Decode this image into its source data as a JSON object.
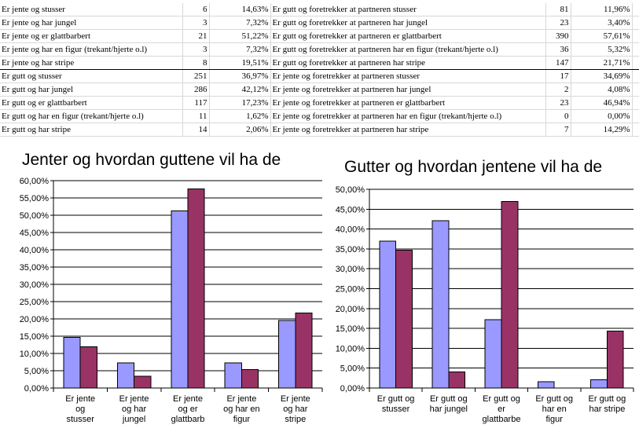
{
  "sheet": {
    "left_rows": [
      {
        "label": "Er jente og stusser",
        "count": "6",
        "pct": "14,63%"
      },
      {
        "label": "Er jente og har jungel",
        "count": "3",
        "pct": "7,32%"
      },
      {
        "label": "Er jente og er glattbarbert",
        "count": "21",
        "pct": "51,22%"
      },
      {
        "label": "Er jente og har en figur (trekant/hjerte o.l)",
        "count": "3",
        "pct": "7,32%"
      },
      {
        "label": "Er jente og har stripe",
        "count": "8",
        "pct": "19,51%"
      },
      {
        "label": "Er gutt og stusser",
        "count": "251",
        "pct": "36,97%"
      },
      {
        "label": "Er gutt og har jungel",
        "count": "286",
        "pct": "42,12%"
      },
      {
        "label": "Er gutt og er glattbarbert",
        "count": "117",
        "pct": "17,23%"
      },
      {
        "label": "Er gutt og har en figur (trekant/hjerte o.l)",
        "count": "11",
        "pct": "1,62%"
      },
      {
        "label": "Er gutt og har stripe",
        "count": "14",
        "pct": "2,06%"
      }
    ],
    "right_rows": [
      {
        "label": "Er gutt og foretrekker at partneren stusser",
        "count": "81",
        "pct": "11,96%"
      },
      {
        "label": "Er gutt og foretrekker at partneren har jungel",
        "count": "23",
        "pct": "3,40%"
      },
      {
        "label": "Er gutt og foretrekker at partneren er glattbarbert",
        "count": "390",
        "pct": "57,61%"
      },
      {
        "label": "Er gutt og foretrekker at partneren har en figur (trekant/hjerte o.l)",
        "count": "36",
        "pct": "5,32%"
      },
      {
        "label": "Er gutt og foretrekker at partneren har stripe",
        "count": "147",
        "pct": "21,71%"
      },
      {
        "label": "Er jente og foretrekker at partneren stusser",
        "count": "17",
        "pct": "34,69%"
      },
      {
        "label": "Er jente og foretrekker at partneren har jungel",
        "count": "2",
        "pct": "4,08%"
      },
      {
        "label": "Er jente og foretrekker at partneren er glattbarbert",
        "count": "23",
        "pct": "46,94%"
      },
      {
        "label": "Er jente og foretrekker at partneren har en figur (trekant/hjerte o.l)",
        "count": "0",
        "pct": "0,00%"
      },
      {
        "label": "Er jente og foretrekker at partneren har stripe",
        "count": "7",
        "pct": "14,29%"
      }
    ]
  },
  "colors": {
    "series_a": "#9999ff",
    "series_b": "#993366",
    "gridline": "#000000",
    "axis": "#000000"
  },
  "chart_data": [
    {
      "type": "bar",
      "title": "Jenter og hvordan guttene vil ha de",
      "categories": [
        [
          "Er jente",
          "og",
          "stusser"
        ],
        [
          "Er jente",
          "og har",
          "jungel"
        ],
        [
          "Er jente",
          "og er",
          "glattbarb"
        ],
        [
          "Er jente",
          "og har en",
          "figur"
        ],
        [
          "Er jente",
          "og har",
          "stripe"
        ]
      ],
      "series": [
        {
          "values": [
            14.63,
            7.32,
            51.22,
            7.32,
            19.51
          ]
        },
        {
          "values": [
            11.96,
            3.4,
            57.61,
            5.32,
            21.71
          ]
        }
      ],
      "ylim": [
        0,
        60
      ],
      "ystep": 5,
      "ytick_labels": [
        "0,00%",
        "5,00%",
        "10,00%",
        "15,00%",
        "20,00%",
        "25,00%",
        "30,00%",
        "35,00%",
        "40,00%",
        "45,00%",
        "50,00%",
        "55,00%",
        "60,00%"
      ],
      "grid": true,
      "legend": "none"
    },
    {
      "type": "bar",
      "title": "Gutter og hvordan jentene vil ha de",
      "categories": [
        [
          "Er gutt og",
          "stusser"
        ],
        [
          "Er gutt og",
          "har jungel"
        ],
        [
          "Er gutt og",
          "er",
          "glattbarbe"
        ],
        [
          "Er gutt og",
          "har en",
          "figur"
        ],
        [
          "Er gutt og",
          "har stripe"
        ]
      ],
      "series": [
        {
          "values": [
            36.97,
            42.12,
            17.23,
            1.62,
            2.06
          ]
        },
        {
          "values": [
            34.69,
            4.08,
            46.94,
            0.0,
            14.29
          ]
        }
      ],
      "ylim": [
        0,
        50
      ],
      "ystep": 5,
      "ytick_labels": [
        "0,00%",
        "5,00%",
        "10,00%",
        "15,00%",
        "20,00%",
        "25,00%",
        "30,00%",
        "35,00%",
        "40,00%",
        "45,00%",
        "50,00%"
      ],
      "grid": true,
      "legend": "none"
    }
  ]
}
